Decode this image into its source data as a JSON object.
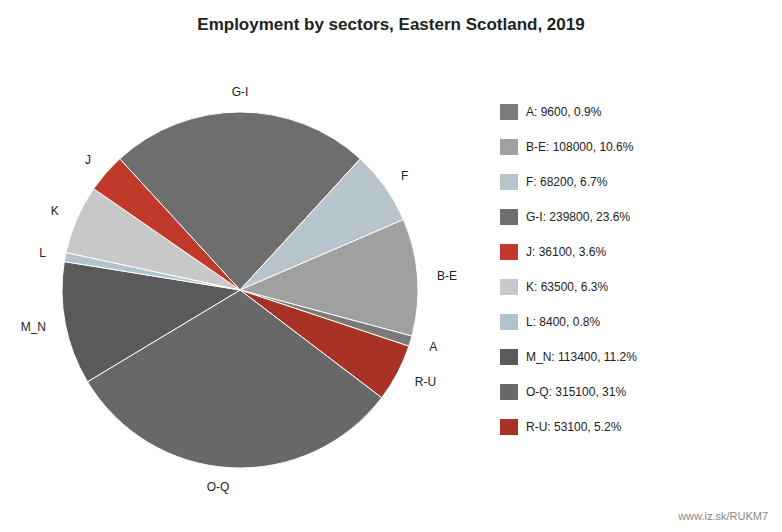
{
  "chart_data": {
    "type": "pie",
    "title": "Employment by sectors, Eastern Scotland, 2019",
    "categories": [
      "G-I",
      "F",
      "B-E",
      "A",
      "R-U",
      "O-Q",
      "M_N",
      "L",
      "K",
      "J"
    ],
    "values": [
      239800,
      68200,
      108000,
      9600,
      53100,
      315100,
      113400,
      8400,
      63500,
      36100
    ],
    "colors": [
      "#6e6e6e",
      "#b8c4cc",
      "#a0a0a0",
      "#7a7a7a",
      "#a93226",
      "#686868",
      "#5a5a5a",
      "#b0c4ce",
      "#c8c8c8",
      "#c0392b"
    ],
    "legend_entries": [
      {
        "label": "A: 9600, 0.9%",
        "color": "#7a7a7a"
      },
      {
        "label": "B-E: 108000, 10.6%",
        "color": "#a0a0a0"
      },
      {
        "label": "F: 68200, 6.7%",
        "color": "#b8c4cc"
      },
      {
        "label": "G-I: 239800, 23.6%",
        "color": "#6e6e6e"
      },
      {
        "label": "J: 36100, 3.6%",
        "color": "#c0392b"
      },
      {
        "label": "K: 63500, 6.3%",
        "color": "#c8c8c8"
      },
      {
        "label": "L: 8400, 0.8%",
        "color": "#b0c4ce"
      },
      {
        "label": "M_N: 113400, 11.2%",
        "color": "#5a5a5a"
      },
      {
        "label": "O-Q: 315100, 31%",
        "color": "#686868"
      },
      {
        "label": "R-U: 53100, 5.2%",
        "color": "#a93226"
      }
    ],
    "annotations": [
      "www.iz.sk/RUKM7"
    ]
  }
}
